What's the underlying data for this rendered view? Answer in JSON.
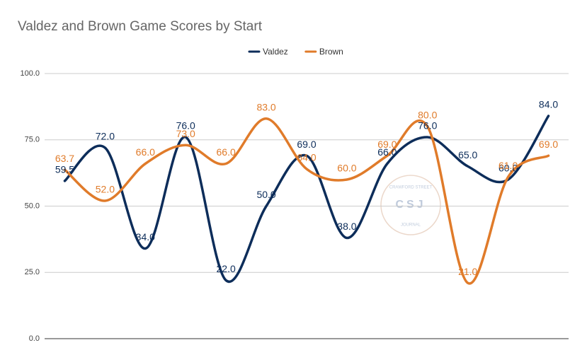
{
  "chart_data": {
    "type": "line",
    "title": "Valdez and Brown Game Scores by Start",
    "categories": [
      null,
      null,
      null,
      null,
      null,
      null,
      null,
      null,
      null,
      null,
      null,
      null,
      null
    ],
    "series": [
      {
        "name": "Valdez",
        "color": "#0d2d5a",
        "values": [
          59.5,
          72.0,
          34.0,
          76.0,
          22.0,
          50.0,
          69.0,
          38.0,
          66.0,
          76.0,
          65.0,
          60.0,
          84.0
        ],
        "value_labels": [
          "59.5",
          "72.0",
          "34.0",
          "76.0",
          "22.0",
          "50.0",
          "69.0",
          "38.0",
          "66.0",
          "76.0",
          "65.0",
          "60.0",
          "84.0"
        ]
      },
      {
        "name": "Brown",
        "color": "#e07b2a",
        "values": [
          63.7,
          52.0,
          66.0,
          73.0,
          66.0,
          83.0,
          64.0,
          60.0,
          69.0,
          80.0,
          21.0,
          61.0,
          69.0
        ],
        "value_labels": [
          "63.7",
          "52.0",
          "66.0",
          "73.0",
          "66.0",
          "83.0",
          "64.0",
          "60.0",
          "69.0",
          "80.0",
          "21.0",
          "61.0",
          "69.0"
        ]
      }
    ],
    "ylim": [
      0,
      100
    ],
    "yticks": [
      {
        "value": 0,
        "label": "0.0"
      },
      {
        "value": 25,
        "label": "25.0"
      },
      {
        "value": 50,
        "label": "50.0"
      },
      {
        "value": 75,
        "label": "75.0"
      },
      {
        "value": 100,
        "label": "100.0"
      }
    ],
    "grid": true,
    "legend": "top",
    "watermark": {
      "top": "CRAWFORD STREET",
      "center": "CSJ",
      "bottom": "JOURNAL"
    }
  }
}
